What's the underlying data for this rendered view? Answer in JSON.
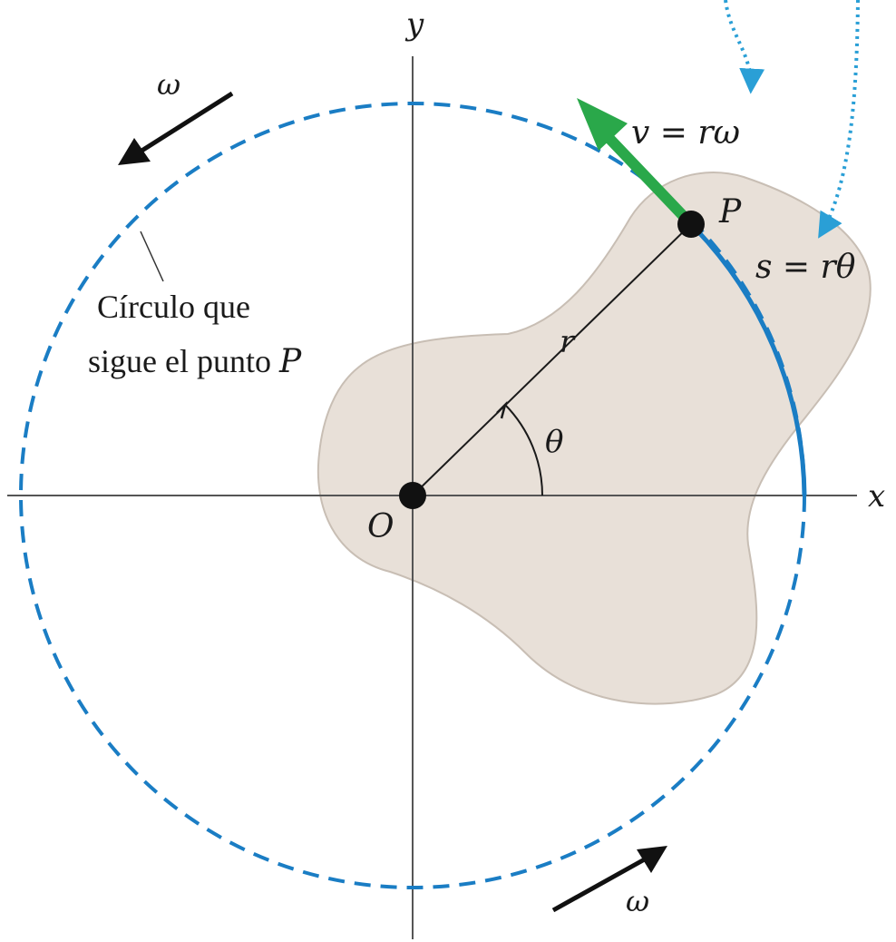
{
  "axes": {
    "x_label": "x",
    "y_label": "y",
    "origin_label": "O"
  },
  "point": {
    "label": "P"
  },
  "radius_label": "r",
  "angle_label": "θ",
  "velocity": {
    "v": "v",
    "rest": " = rω"
  },
  "arc_length": {
    "s": "s",
    "rest": " = rθ"
  },
  "circle_caption": {
    "line1": "Círculo que",
    "line2_text": "sigue el punto ",
    "line2_point": "P"
  },
  "omega_top": "ω",
  "omega_bottom": "ω",
  "colors": {
    "circle": "#1a7dc4",
    "velocity_arrow": "#2aa84a",
    "callout": "#2a9fd6",
    "body_fill": "#e8e0d8",
    "body_stroke": "#c8beb4",
    "axis": "#555555",
    "ink": "#1a1a1a"
  }
}
